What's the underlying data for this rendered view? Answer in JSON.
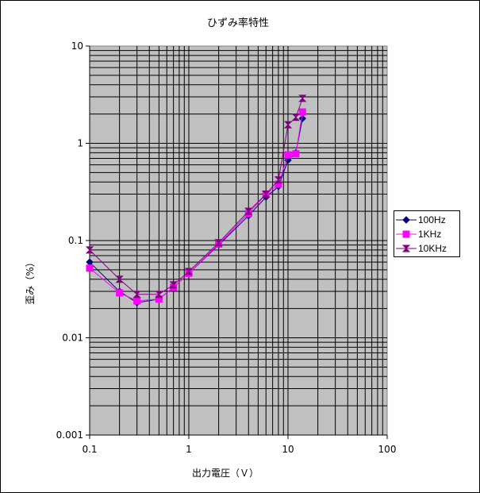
{
  "chart_data": {
    "type": "line",
    "title": "ひずみ率特性",
    "xlabel": "出力電圧（Ｖ）",
    "ylabel": "歪み（%）",
    "x_scale": "log",
    "y_scale": "log",
    "xlim": [
      0.1,
      100
    ],
    "ylim": [
      0.001,
      10
    ],
    "x_tick_labels": [
      "0.1",
      "1",
      "10",
      "100"
    ],
    "y_tick_labels": [
      "10",
      "1",
      "0.1",
      "0.01",
      "0.001"
    ],
    "grid": true,
    "plot_background": "#c0c0c0",
    "legend_position": "right",
    "series": [
      {
        "name": "100Hz",
        "color": "#000080",
        "marker": "diamond",
        "x": [
          0.1,
          0.2,
          0.3,
          0.5,
          0.7,
          1,
          2,
          4,
          6,
          8,
          10,
          12,
          14
        ],
        "y": [
          0.06,
          0.03,
          0.023,
          0.025,
          0.033,
          0.046,
          0.09,
          0.18,
          0.28,
          0.36,
          0.67,
          0.8,
          1.8
        ]
      },
      {
        "name": "1KHz",
        "color": "#ff00ff",
        "marker": "square",
        "x": [
          0.1,
          0.2,
          0.3,
          0.5,
          0.7,
          1,
          2,
          4,
          6,
          8,
          10,
          12,
          14
        ],
        "y": [
          0.052,
          0.029,
          0.024,
          0.025,
          0.033,
          0.046,
          0.092,
          0.19,
          0.3,
          0.38,
          0.76,
          0.78,
          2.1
        ]
      },
      {
        "name": "10KHz",
        "color": "#800080",
        "marker": "hourglass",
        "x": [
          0.1,
          0.2,
          0.3,
          0.5,
          0.7,
          1,
          2,
          4,
          6,
          8,
          10,
          12,
          14
        ],
        "y": [
          0.08,
          0.04,
          0.028,
          0.028,
          0.035,
          0.048,
          0.095,
          0.2,
          0.3,
          0.42,
          1.55,
          1.85,
          2.9
        ]
      }
    ]
  }
}
